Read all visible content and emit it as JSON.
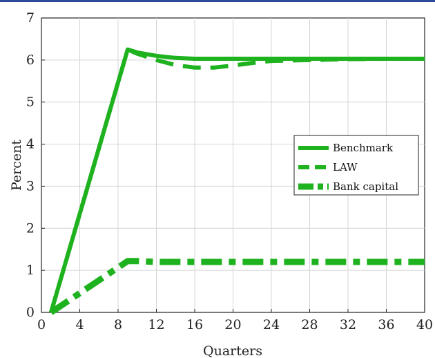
{
  "chart_data": {
    "type": "line",
    "title": "",
    "xlabel": "Quarters",
    "ylabel": "Percent",
    "xlim": [
      0,
      40
    ],
    "ylim": [
      0,
      7
    ],
    "xticks": [
      "0",
      "4",
      "8",
      "12",
      "16",
      "20",
      "24",
      "28",
      "32",
      "36",
      "40"
    ],
    "yticks": [
      "0",
      "1",
      "2",
      "3",
      "4",
      "5",
      "6",
      "7"
    ],
    "grid": true,
    "legend_position": "right",
    "series": [
      {
        "name": "Benchmark",
        "style": "solid",
        "color": "#1fb21f",
        "x": [
          1,
          9,
          10,
          12,
          14,
          16,
          20,
          24,
          28,
          32,
          36,
          40
        ],
        "y": [
          0,
          6.25,
          6.18,
          6.1,
          6.05,
          6.03,
          6.03,
          6.03,
          6.03,
          6.03,
          6.03,
          6.03
        ]
      },
      {
        "name": "LAW",
        "style": "dashed",
        "color": "#1fb21f",
        "x": [
          1,
          9,
          10,
          12,
          14,
          16,
          18,
          20,
          22,
          24,
          28,
          32,
          36,
          40
        ],
        "y": [
          0,
          6.25,
          6.15,
          6.0,
          5.88,
          5.82,
          5.82,
          5.87,
          5.93,
          5.98,
          6.0,
          6.02,
          6.03,
          6.03
        ]
      },
      {
        "name": "Bank capital",
        "style": "dashdot",
        "color": "#1fb21f",
        "x": [
          1,
          9,
          10,
          12,
          16,
          20,
          24,
          28,
          32,
          36,
          40
        ],
        "y": [
          0,
          1.22,
          1.22,
          1.2,
          1.2,
          1.2,
          1.2,
          1.2,
          1.2,
          1.2,
          1.2
        ]
      }
    ]
  }
}
